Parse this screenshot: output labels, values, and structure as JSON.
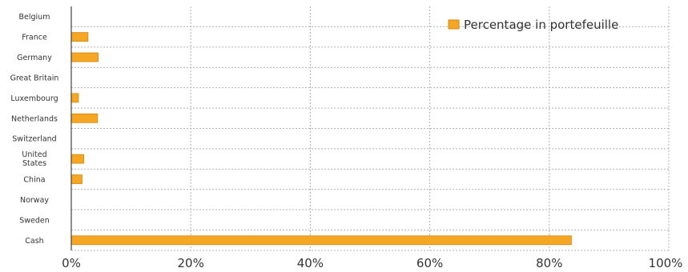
{
  "chart_data": {
    "type": "bar",
    "orientation": "horizontal",
    "categories": [
      "Belgium",
      "France",
      "Germany",
      "Great Britain",
      "Luxembourg",
      "Netherlands",
      "Switzerland",
      "United States",
      "China",
      "Norway",
      "Sweden",
      "Cash"
    ],
    "series": [
      {
        "name": "Percentage in portefeuille",
        "values": [
          0,
          2.8,
          4.5,
          0,
          1.2,
          4.4,
          0,
          2.1,
          1.8,
          0,
          0,
          83.7
        ],
        "color": "#f5a623"
      }
    ],
    "x_ticks": [
      "0%",
      "20%",
      "40%",
      "60%",
      "80%",
      "100%"
    ],
    "xlim": [
      0,
      100
    ],
    "grid": true,
    "legend_position": "top-right",
    "title": "",
    "xlabel": "",
    "ylabel": ""
  }
}
